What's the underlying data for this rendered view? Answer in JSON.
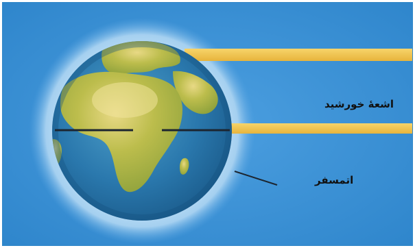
{
  "diagram": {
    "labels": {
      "sun_rays": "اشعهٔ خورشید",
      "atmosphere": "اتمسفر"
    },
    "colors": {
      "background": "#3f93d8",
      "atmosphere": "#a9d4f2",
      "ocean": "#2e7bb6",
      "land": "#b7ba46",
      "sun_ray": "#f2c64a",
      "equator": "#1c2530"
    }
  }
}
